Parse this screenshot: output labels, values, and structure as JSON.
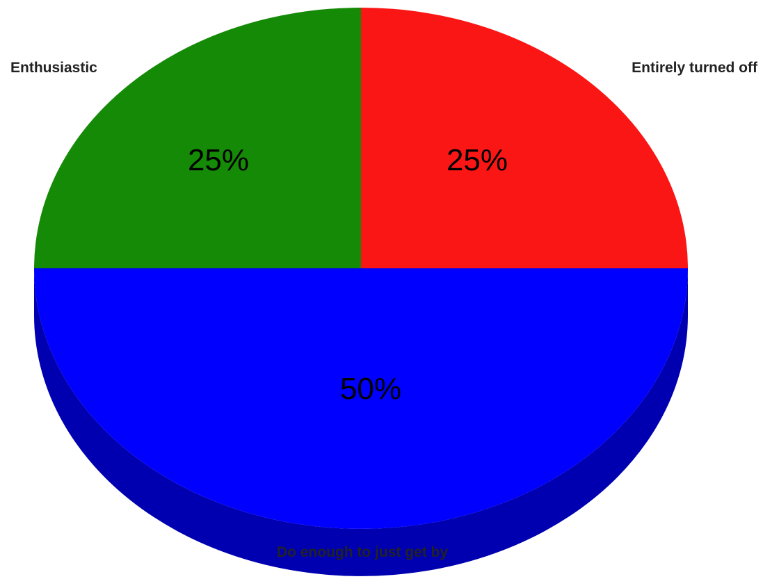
{
  "chart_data": {
    "type": "pie",
    "title": "",
    "slices": [
      {
        "label": "Entirely turned off",
        "value": 25,
        "display": "25%",
        "color": "#fb1616",
        "side_color": "#b50f0f"
      },
      {
        "label": "Do enough to just get by",
        "value": 50,
        "display": "50%",
        "color": "#0000fe",
        "side_color": "#0000b0"
      },
      {
        "label": "Enthusiastic",
        "value": 25,
        "display": "25%",
        "color": "#158a06",
        "side_color": "#0d5c03"
      }
    ],
    "start_angle": "12 o'clock",
    "direction": "clockwise",
    "style": "3d-tilted",
    "legend": "none",
    "label_color": "#222222",
    "value_label_color": "#000000"
  }
}
